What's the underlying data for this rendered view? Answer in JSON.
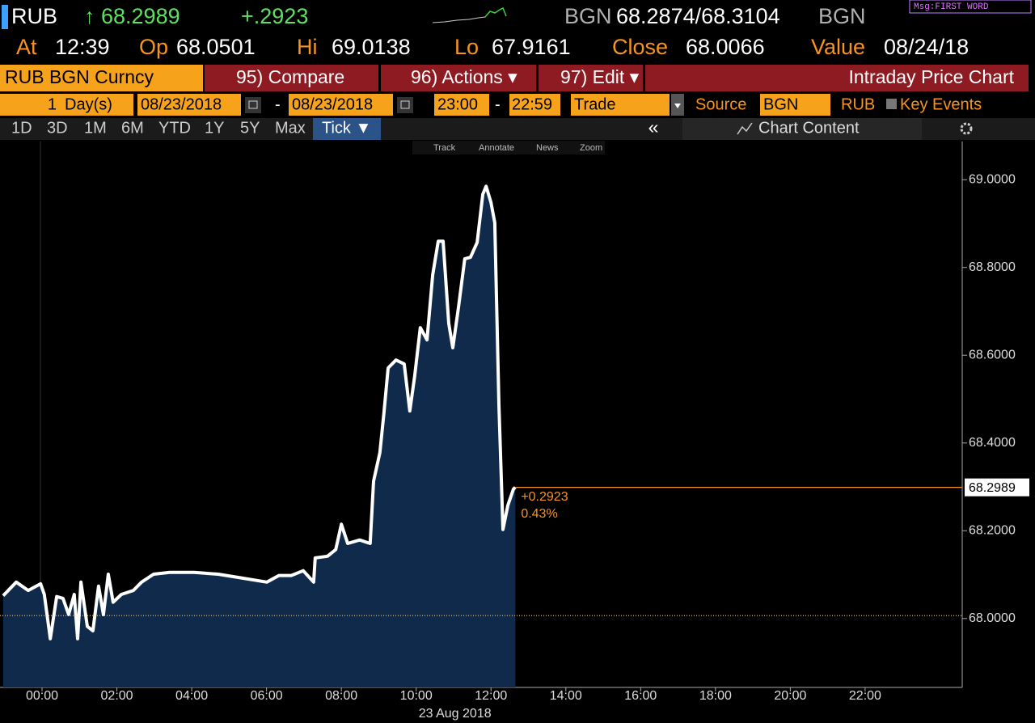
{
  "header": {
    "ticker": "RUB",
    "price": "↑ 68.2989",
    "change": "+.2923",
    "bid_ccy": "BGN",
    "bid_ask": "68.2874/68.3104",
    "ask_ccy": "BGN",
    "msg": "Msg:FIRST WORD",
    "stats": [
      {
        "label": "At",
        "value": "12:39"
      },
      {
        "label": "Op",
        "value": "68.0501"
      },
      {
        "label": "Hi",
        "value": "69.0138"
      },
      {
        "label": "Lo",
        "value": "67.9161"
      },
      {
        "label": "Close",
        "value": "68.0066"
      },
      {
        "label": "Value",
        "value": "08/24/18"
      }
    ]
  },
  "toolbar": {
    "security": "RUB BGN Curncy",
    "buttons": [
      "95) Compare",
      "96) Actions ▾",
      "97) Edit ▾"
    ],
    "title": "Intraday Price Chart"
  },
  "settings": {
    "period": "1",
    "unit": "Day(s)",
    "start_date": "08/23/2018",
    "date_dash": "-",
    "end_date": "08/23/2018",
    "start_time": "23:00",
    "time_dash": "-",
    "end_time": "22:59",
    "event": "Trade",
    "source_label": "Source",
    "source": "BGN",
    "ccy": "RUB",
    "key_events": "Key Events"
  },
  "tabs": [
    "1D",
    "3D",
    "1M",
    "6M",
    "YTD",
    "1Y",
    "5Y",
    "Max",
    "Tick ▼"
  ],
  "collapse": "«",
  "chart_content": "Chart Content",
  "tools": [
    "Track",
    "Annotate",
    "News",
    "Zoom"
  ],
  "chart_data": {
    "type": "area",
    "color": "#ffffff",
    "fill": "#0f2a4b",
    "x": [
      -1.04,
      -0.69,
      -0.37,
      -0.04,
      0.06,
      0.22,
      0.39,
      0.56,
      0.71,
      0.86,
      0.95,
      1.04,
      1.21,
      1.36,
      1.51,
      1.64,
      1.77,
      1.9,
      2.12,
      2.44,
      2.66,
      2.98,
      3.41,
      4.06,
      4.71,
      5.36,
      6.01,
      6.33,
      6.66,
      6.98,
      7.26,
      7.3,
      7.63,
      7.85,
      8.0,
      8.17,
      8.49,
      8.77,
      8.86,
      9.03,
      9.14,
      9.25,
      9.46,
      9.68,
      9.83,
      9.96,
      10.11,
      10.29,
      10.44,
      10.59,
      10.72,
      10.87,
      10.98,
      11.13,
      11.3,
      11.45,
      11.63,
      11.78,
      11.87,
      12.0,
      12.1,
      12.21,
      12.32,
      12.45,
      12.6,
      12.65
    ],
    "values": [
      68.052,
      68.083,
      68.064,
      68.079,
      68.055,
      67.954,
      68.05,
      68.046,
      68.009,
      68.055,
      67.954,
      68.083,
      67.982,
      67.972,
      68.074,
      68.009,
      68.101,
      68.037,
      68.055,
      68.064,
      68.083,
      68.101,
      68.105,
      68.105,
      68.101,
      68.092,
      68.083,
      68.098,
      68.098,
      68.109,
      68.083,
      68.138,
      68.142,
      68.157,
      68.215,
      68.171,
      68.179,
      68.171,
      68.313,
      68.378,
      68.47,
      68.571,
      68.589,
      68.58,
      68.473,
      68.552,
      68.663,
      68.635,
      68.783,
      68.86,
      68.86,
      68.672,
      68.617,
      68.709,
      68.82,
      68.823,
      68.857,
      68.967,
      68.985,
      68.948,
      68.902,
      68.488,
      68.203,
      68.258,
      68.295,
      68.2989
    ],
    "xlim": [
      -1.124,
      24.595
    ],
    "ylim": [
      67.843,
      69.087
    ],
    "xticks": [
      {
        "value": 0,
        "label": "00:00"
      },
      {
        "value": 2,
        "label": "02:00"
      },
      {
        "value": 4,
        "label": "04:00"
      },
      {
        "value": 6,
        "label": "06:00"
      },
      {
        "value": 8,
        "label": "08:00"
      },
      {
        "value": 10,
        "label": "10:00"
      },
      {
        "value": 12,
        "label": "12:00"
      },
      {
        "value": 14,
        "label": "14:00"
      },
      {
        "value": 16,
        "label": "16:00"
      },
      {
        "value": 18,
        "label": "18:00"
      },
      {
        "value": 20,
        "label": "20:00"
      },
      {
        "value": 22,
        "label": "22:00"
      }
    ],
    "yticks": [
      {
        "value": 68,
        "label": "68.0000"
      },
      {
        "value": 68.2,
        "label": "68.2000"
      },
      {
        "value": 68.4,
        "label": "68.4000"
      },
      {
        "value": 68.6,
        "label": "68.6000"
      },
      {
        "value": 68.8,
        "label": "68.8000"
      },
      {
        "value": 69,
        "label": "69.0000"
      }
    ],
    "x_label": "23 Aug 2018",
    "grid": false,
    "last_value": 68.2989,
    "change_label": "+0.2923",
    "pct_label": "0.43%",
    "marker_color": "#f7941d",
    "reference_value": 68.0066
  }
}
